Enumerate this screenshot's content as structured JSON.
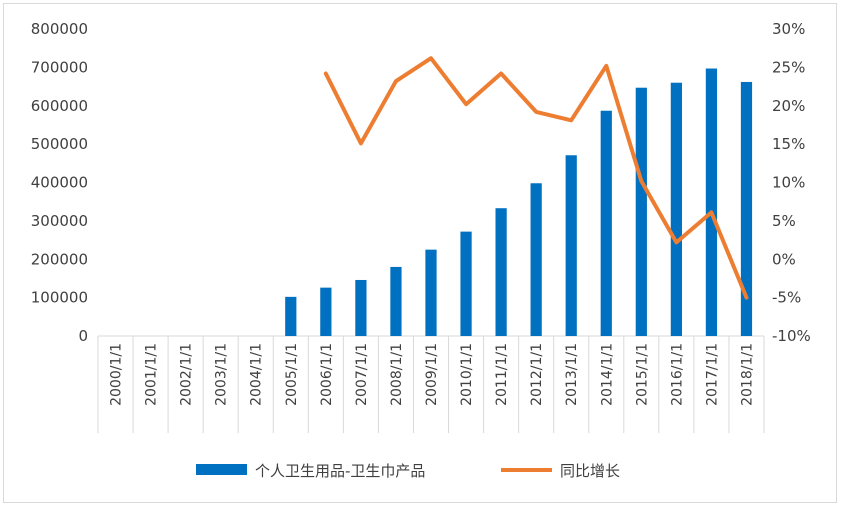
{
  "chart_data": {
    "type": "bar+line",
    "categories": [
      "2000/1/1",
      "2001/1/1",
      "2002/1/1",
      "2003/1/1",
      "2004/1/1",
      "2005/1/1",
      "2006/1/1",
      "2007/1/1",
      "2008/1/1",
      "2009/1/1",
      "2010/1/1",
      "2011/1/1",
      "2012/1/1",
      "2013/1/1",
      "2014/1/1",
      "2015/1/1",
      "2016/1/1",
      "2017/1/1",
      "2018/1/1"
    ],
    "series": [
      {
        "name": "个人卫生用品-卫生巾产品",
        "type": "bar",
        "axis": "left",
        "color": "#0070C0",
        "values": [
          null,
          null,
          null,
          null,
          null,
          102000,
          126000,
          146000,
          180000,
          225000,
          272000,
          333000,
          398000,
          471000,
          587000,
          647000,
          660000,
          697000,
          662000
        ]
      },
      {
        "name": "同比增长",
        "type": "line",
        "axis": "right",
        "color": "#ED7D31",
        "values": [
          null,
          null,
          null,
          null,
          null,
          null,
          0.242,
          0.151,
          0.232,
          0.262,
          0.202,
          0.242,
          0.192,
          0.181,
          0.252,
          0.102,
          0.022,
          0.061,
          -0.05
        ]
      }
    ],
    "y_left": {
      "min": 0,
      "max": 800000,
      "step": 100000,
      "ticks": [
        "0",
        "100000",
        "200000",
        "300000",
        "400000",
        "500000",
        "600000",
        "700000",
        "800000"
      ]
    },
    "y_right": {
      "min": -0.1,
      "max": 0.3,
      "step": 0.05,
      "ticks": [
        "-10%",
        "-5%",
        "0%",
        "5%",
        "10%",
        "15%",
        "20%",
        "25%",
        "30%"
      ]
    },
    "grid": false,
    "legend": "bottom"
  }
}
